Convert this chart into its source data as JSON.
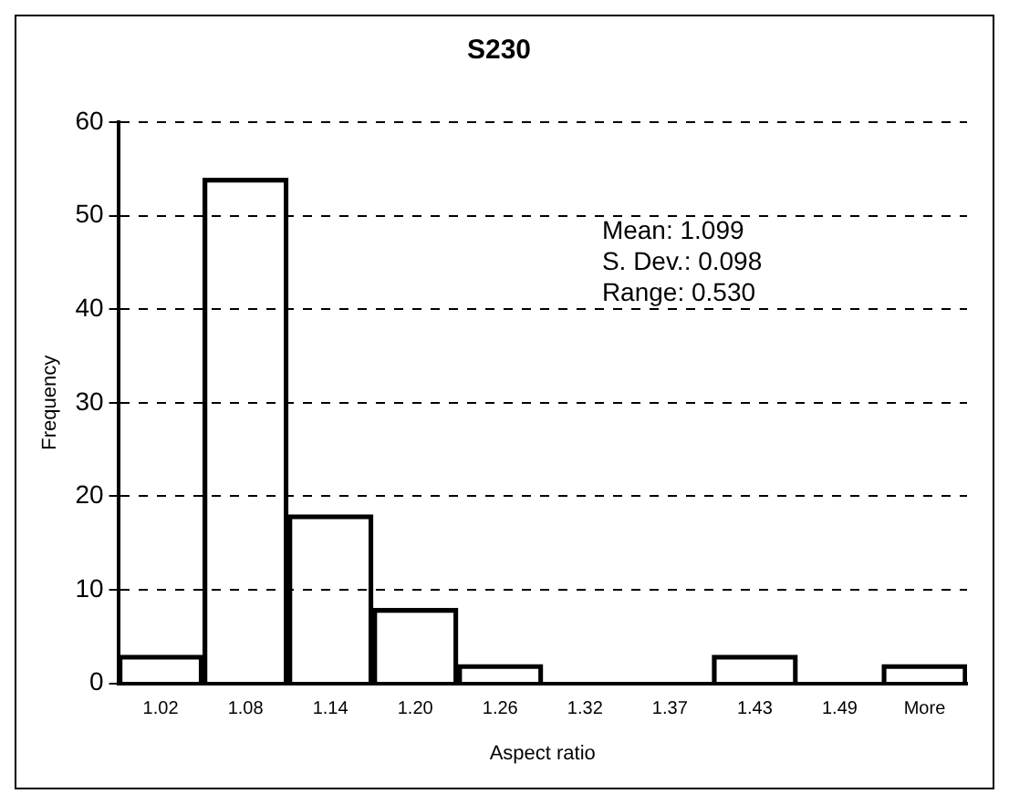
{
  "chart_data": {
    "type": "bar",
    "title": "S230",
    "xlabel": "Aspect ratio",
    "ylabel": "Frequency",
    "categories": [
      "1.02",
      "1.08",
      "1.14",
      "1.20",
      "1.26",
      "1.32",
      "1.37",
      "1.43",
      "1.49",
      "More"
    ],
    "values": [
      3,
      54,
      18,
      8,
      2,
      0,
      0,
      3,
      0,
      2
    ],
    "color": "#000000",
    "ylim": [
      0,
      60
    ],
    "yticks": [
      0,
      10,
      20,
      30,
      40,
      50,
      60
    ],
    "grid": "y",
    "line_style": "dashed",
    "legend": false,
    "annotations": [
      "Mean: 1.099",
      "S. Dev.: 0.098",
      "Range: 0.530"
    ]
  }
}
